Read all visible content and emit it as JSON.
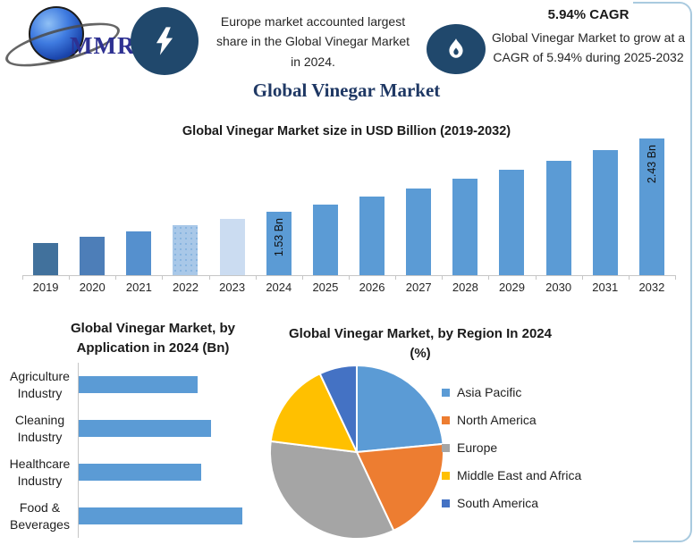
{
  "page": {
    "title": "Global Vinegar Market"
  },
  "header": {
    "logo_text": "MMR",
    "fact": "Europe market accounted largest share in the Global Vinegar Market in 2024.",
    "cagr_title": "5.94% CAGR",
    "cagr_text": "Global Vinegar Market to grow at a CAGR of 5.94% during 2025-2032"
  },
  "colors": {
    "badge_navy": "#20486C",
    "title_navy": "#1F3864",
    "primary_blue": "#5B9BD5",
    "card_border": "#A9CADF"
  },
  "chart_data": [
    {
      "id": "market_size",
      "type": "bar",
      "title": "Global Vinegar Market size in USD Billion (2019-2032)",
      "xlabel": "",
      "ylabel": "USD Billion",
      "categories": [
        "2019",
        "2020",
        "2021",
        "2022",
        "2023",
        "2024",
        "2025",
        "2026",
        "2027",
        "2028",
        "2029",
        "2030",
        "2031",
        "2032"
      ],
      "values": [
        1.15,
        1.22,
        1.29,
        1.36,
        1.44,
        1.53,
        1.62,
        1.72,
        1.82,
        1.93,
        2.04,
        2.16,
        2.29,
        2.43
      ],
      "bar_labels": [
        "",
        "",
        "",
        "",
        "",
        "1.53 Bn",
        "",
        "",
        "",
        "",
        "",
        "",
        "",
        "2.43 Bn"
      ],
      "bar_colors": [
        "#41719C",
        "#4D7EB8",
        "#5590CE",
        "#A9C8E8",
        "#CBDCF1",
        "#5B9BD5",
        "#5B9BD5",
        "#5B9BD5",
        "#5B9BD5",
        "#5B9BD5",
        "#5B9BD5",
        "#5B9BD5",
        "#5B9BD5",
        "#5B9BD5"
      ],
      "pattern_bar_index": 3,
      "ylim": [
        0.75,
        2.55
      ],
      "grid": false,
      "legend": false
    },
    {
      "id": "by_application",
      "type": "bar",
      "orientation": "horizontal",
      "title": "Global Vinegar Market, by Application in 2024 (Bn)",
      "categories": [
        "Agriculture Industry",
        "Cleaning Industry",
        "Healthcare Industry",
        "Food & Beverages"
      ],
      "values": [
        0.34,
        0.38,
        0.35,
        0.47
      ],
      "xlim": [
        0,
        0.52
      ],
      "bar_color": "#5B9BD5",
      "grid": false,
      "legend": false
    },
    {
      "id": "by_region",
      "type": "pie",
      "title": "Global Vinegar Market, by Region In 2024 (%)",
      "labels": [
        "Asia Pacific",
        "North America",
        "Europe",
        "Middle East and Africa",
        "South America"
      ],
      "values": [
        23.5,
        19.5,
        34,
        16,
        7
      ],
      "colors": [
        "#5B9BD5",
        "#ED7D31",
        "#A5A5A5",
        "#FFC000",
        "#4472C4"
      ],
      "start_angle_deg": 0,
      "direction": "clockwise",
      "legend_position": "right"
    }
  ]
}
